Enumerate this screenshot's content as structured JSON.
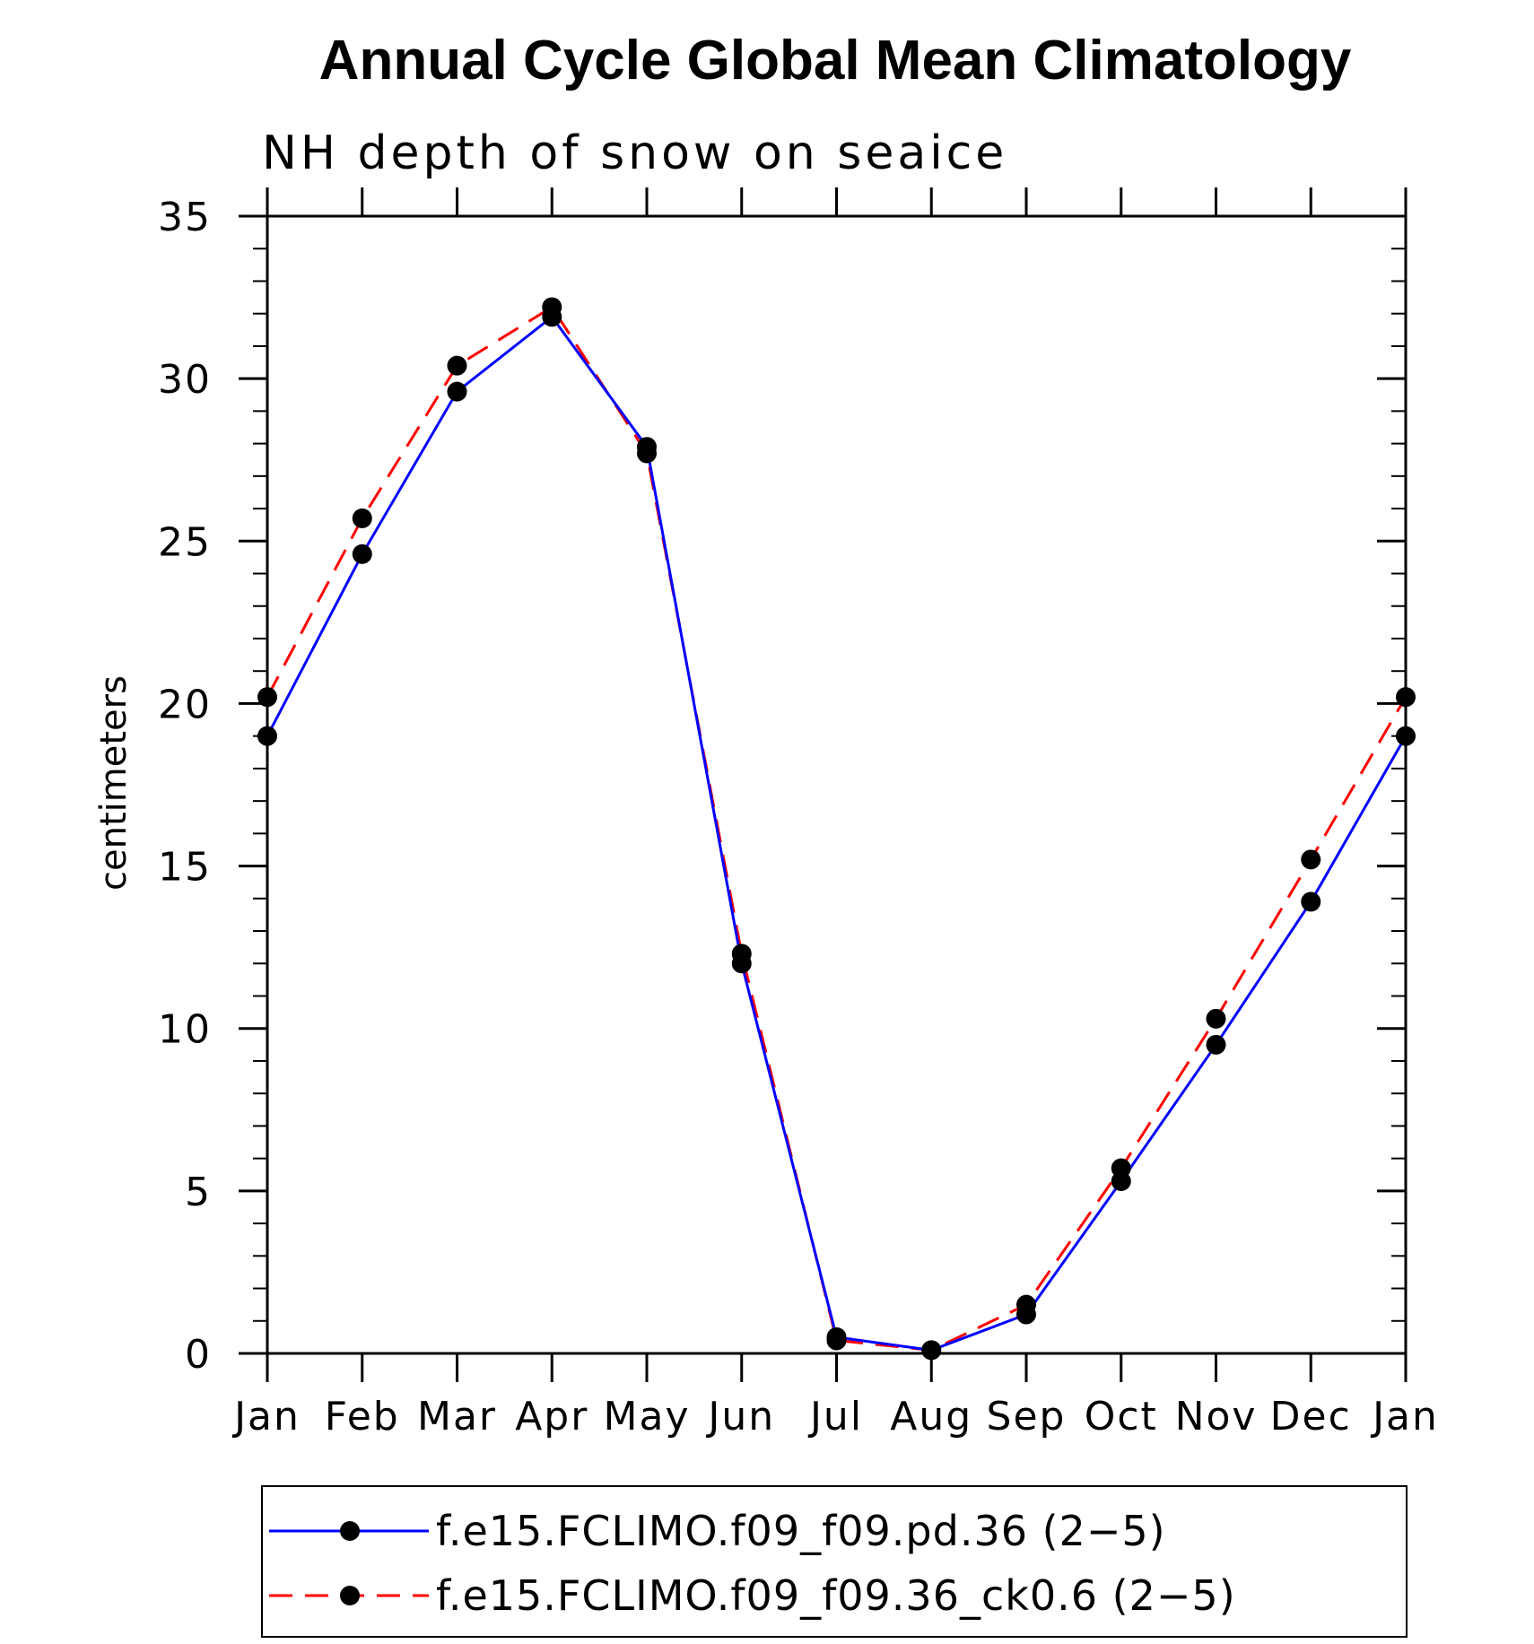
{
  "chart_data": {
    "type": "line",
    "title": "Annual Cycle Global Mean Climatology",
    "subtitle": "NH depth of snow on seaice",
    "xlabel": "",
    "ylabel": "centimeters",
    "categories": [
      "Jan",
      "Feb",
      "Mar",
      "Apr",
      "May",
      "Jun",
      "Jul",
      "Aug",
      "Sep",
      "Oct",
      "Nov",
      "Dec",
      "Jan"
    ],
    "ylim": [
      0,
      35
    ],
    "yticks": [
      0,
      5,
      10,
      15,
      20,
      25,
      30,
      35
    ],
    "grid": false,
    "legend_position": "bottom",
    "series": [
      {
        "name": "f.e15.FCLIMO.f09_f09.pd.36 (2−5)",
        "color": "#0000ff",
        "dash": "solid",
        "marker": "filled-circle",
        "values": [
          19.0,
          24.6,
          29.6,
          31.9,
          27.9,
          12.0,
          0.5,
          0.1,
          1.2,
          5.3,
          9.5,
          13.9,
          19.0
        ]
      },
      {
        "name": "f.e15.FCLIMO.f09_f09.36_ck0.6 (2−5)",
        "color": "#ff0000",
        "dash": "dashed",
        "marker": "filled-circle",
        "values": [
          20.2,
          25.7,
          30.4,
          32.2,
          27.7,
          12.3,
          0.4,
          0.1,
          1.5,
          5.7,
          10.3,
          15.2,
          20.2
        ]
      }
    ]
  }
}
